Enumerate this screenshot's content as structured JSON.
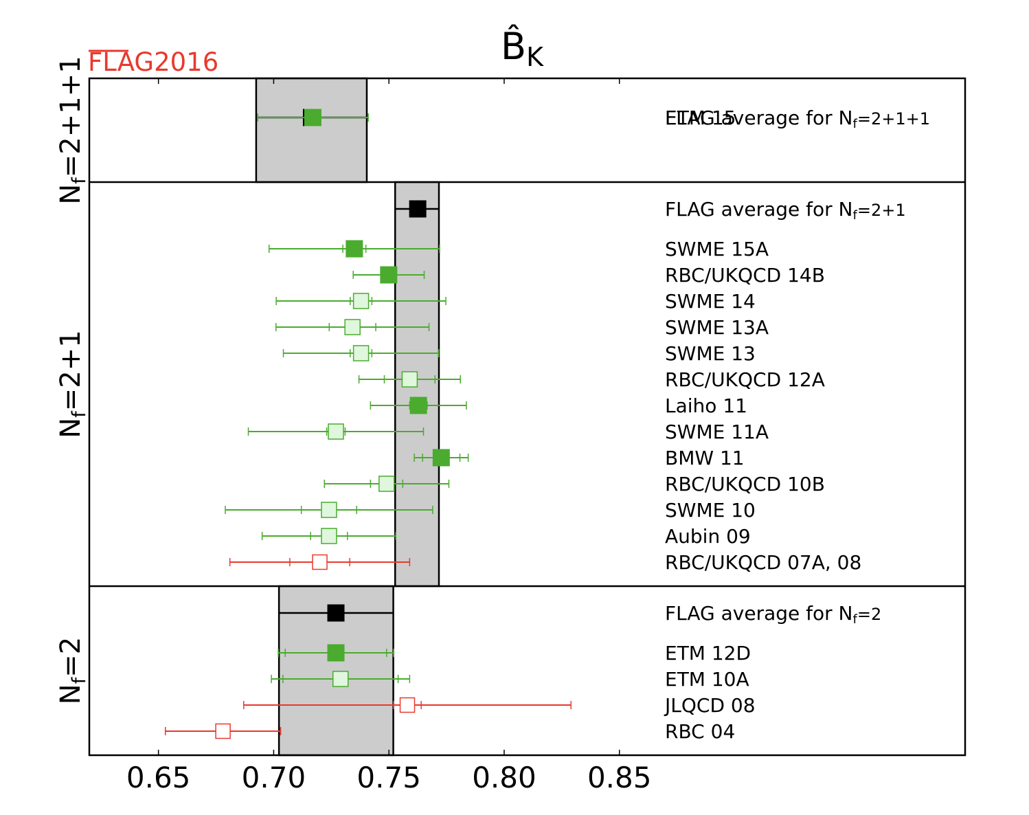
{
  "logo": {
    "text": "FLAG2016",
    "color": "#e8392e"
  },
  "chart_data": {
    "type": "scatter",
    "title": "B̂K",
    "title_main": "B̂",
    "title_sub": "K",
    "xlim": [
      0.62,
      1.0
    ],
    "xticks": [
      "0.65",
      "0.70",
      "0.75",
      "0.80",
      "0.85"
    ],
    "colors": {
      "green": "#4aab2f",
      "light_green": "#dff7dc",
      "red": "#e8392e",
      "band": "#cccccc",
      "black": "#000000"
    },
    "panels": [
      {
        "label_prefix": "N",
        "label_sub": "f",
        "label_suffix": "=2+1+1",
        "band": [
          0.6924,
          0.7404
        ],
        "entries": [
          {
            "name": "FLAG average for N",
            "name_sub": "f",
            "name_suffix": "=2+1+1",
            "value": 0.7164,
            "err_stat": 0.024,
            "err_tot": 0.024,
            "style": "average"
          },
          {
            "name": "ETM 15",
            "value": 0.717,
            "err_stat": 0.024,
            "err_tot": 0.024,
            "style": "green"
          }
        ]
      },
      {
        "label_prefix": "N",
        "label_sub": "f",
        "label_suffix": "=2+1",
        "band": [
          0.7527,
          0.7717
        ],
        "entries": [
          {
            "name": "FLAG average for N",
            "name_sub": "f",
            "name_suffix": "=2+1",
            "value": 0.7625,
            "err_stat": 0.0095,
            "err_tot": 0.0095,
            "style": "average"
          },
          {
            "name": "SWME 15A",
            "value": 0.735,
            "err_stat": 0.005,
            "err_tot": 0.037,
            "style": "green"
          },
          {
            "name": "RBC/UKQCD 14B",
            "value": 0.7499,
            "err_stat": 0.0024,
            "err_tot": 0.0154,
            "style": "green"
          },
          {
            "name": "SWME 14",
            "value": 0.7379,
            "err_stat": 0.0047,
            "err_tot": 0.0368,
            "style": "light"
          },
          {
            "name": "SWME 13A",
            "value": 0.7342,
            "err_stat": 0.0101,
            "err_tot": 0.0332,
            "style": "light"
          },
          {
            "name": "SWME 13",
            "value": 0.7379,
            "err_stat": 0.0047,
            "err_tot": 0.0337,
            "style": "light"
          },
          {
            "name": "RBC/UKQCD 12A",
            "value": 0.759,
            "err_stat": 0.011,
            "err_tot": 0.022,
            "style": "light"
          },
          {
            "name": "Laiho 11",
            "value": 0.7628,
            "err_stat": 0.0038,
            "err_tot": 0.0208,
            "style": "green"
          },
          {
            "name": "SWME 11A",
            "value": 0.727,
            "err_stat": 0.004,
            "err_tot": 0.038,
            "style": "light"
          },
          {
            "name": "BMW 11",
            "value": 0.7727,
            "err_stat": 0.0081,
            "err_tot": 0.0117,
            "style": "green"
          },
          {
            "name": "RBC/UKQCD 10B",
            "value": 0.749,
            "err_stat": 0.007,
            "err_tot": 0.027,
            "style": "light"
          },
          {
            "name": "SWME 10",
            "value": 0.724,
            "err_stat": 0.012,
            "err_tot": 0.045,
            "style": "light"
          },
          {
            "name": "Aubin 09",
            "value": 0.724,
            "err_stat": 0.008,
            "err_tot": 0.029,
            "style": "light"
          },
          {
            "name": "RBC/UKQCD 07A, 08",
            "value": 0.72,
            "err_stat": 0.013,
            "err_tot": 0.039,
            "style": "red"
          }
        ]
      },
      {
        "label_prefix": "N",
        "label_sub": "f",
        "label_suffix": "=2",
        "band": [
          0.7023,
          0.7519
        ],
        "entries": [
          {
            "name": "FLAG average for N",
            "name_sub": "f",
            "name_suffix": "=2",
            "value": 0.727,
            "err_stat": 0.025,
            "err_tot": 0.025,
            "style": "average"
          },
          {
            "name": "ETM 12D",
            "value": 0.727,
            "err_stat": 0.022,
            "err_tot": 0.025,
            "style": "green"
          },
          {
            "name": "ETM 10A",
            "value": 0.729,
            "err_stat": 0.025,
            "err_tot": 0.03,
            "style": "light"
          },
          {
            "name": "JLQCD 08",
            "value": 0.758,
            "err_stat": 0.006,
            "err_tot": 0.071,
            "style": "red"
          },
          {
            "name": "RBC 04",
            "value": 0.678,
            "err_stat": 0.025,
            "err_tot": 0.025,
            "style": "red"
          }
        ]
      }
    ]
  }
}
